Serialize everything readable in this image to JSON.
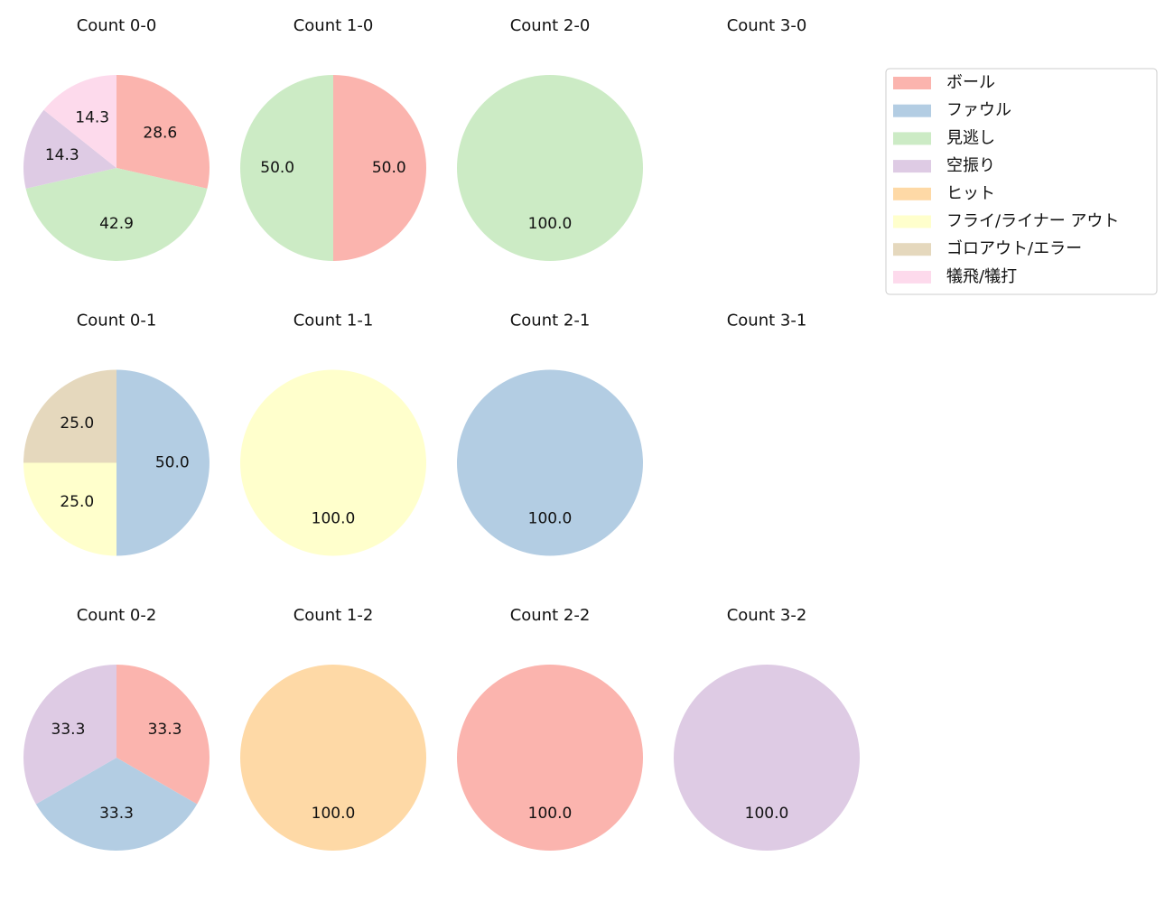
{
  "chart_data": [
    {
      "type": "pie",
      "title": "Count 0-0",
      "values": [
        28.6,
        42.9,
        14.3,
        14.3
      ],
      "value_labels": [
        "28.6",
        "42.9",
        "14.3",
        "14.3"
      ],
      "colors": [
        "#fbb4ae",
        "#ccebc5",
        "#decbe4",
        "#fddaec"
      ]
    },
    {
      "type": "pie",
      "title": "Count 1-0",
      "values": [
        50,
        50
      ],
      "value_labels": [
        "50.0",
        "50.0"
      ],
      "colors": [
        "#fbb4ae",
        "#ccebc5"
      ]
    },
    {
      "type": "pie",
      "title": "Count 2-0",
      "values": [
        100
      ],
      "value_labels": [
        "100.0"
      ],
      "colors": [
        "#ccebc5"
      ]
    },
    {
      "type": "pie",
      "title": "Count 3-0",
      "values": [],
      "value_labels": [],
      "colors": []
    },
    {
      "type": "pie",
      "title": "Count 0-1",
      "values": [
        50,
        25,
        25
      ],
      "value_labels": [
        "50.0",
        "25.0",
        "25.0"
      ],
      "colors": [
        "#b3cde3",
        "#ffffcc",
        "#e5d8bd"
      ]
    },
    {
      "type": "pie",
      "title": "Count 1-1",
      "values": [
        100
      ],
      "value_labels": [
        "100.0"
      ],
      "colors": [
        "#ffffcc"
      ]
    },
    {
      "type": "pie",
      "title": "Count 2-1",
      "values": [
        100
      ],
      "value_labels": [
        "100.0"
      ],
      "colors": [
        "#b3cde3"
      ]
    },
    {
      "type": "pie",
      "title": "Count 3-1",
      "values": [],
      "value_labels": [],
      "colors": []
    },
    {
      "type": "pie",
      "title": "Count 0-2",
      "values": [
        33.3,
        33.3,
        33.3
      ],
      "value_labels": [
        "33.3",
        "33.3",
        "33.3"
      ],
      "colors": [
        "#fbb4ae",
        "#b3cde3",
        "#decbe4"
      ]
    },
    {
      "type": "pie",
      "title": "Count 1-2",
      "values": [
        100
      ],
      "value_labels": [
        "100.0"
      ],
      "colors": [
        "#fed9a6"
      ]
    },
    {
      "type": "pie",
      "title": "Count 2-2",
      "values": [
        100
      ],
      "value_labels": [
        "100.0"
      ],
      "colors": [
        "#fbb4ae"
      ]
    },
    {
      "type": "pie",
      "title": "Count 3-2",
      "values": [
        100
      ],
      "value_labels": [
        "100.0"
      ],
      "colors": [
        "#decbe4"
      ]
    }
  ],
  "legend": {
    "labels": [
      "ボール",
      "ファウル",
      "見逃し",
      "空振り",
      "ヒット",
      "フライ/ライナー アウト",
      "ゴロアウト/エラー",
      "犠飛/犠打"
    ],
    "colors": [
      "#fbb4ae",
      "#b3cde3",
      "#ccebc5",
      "#decbe4",
      "#fed9a6",
      "#ffffcc",
      "#e5d8bd",
      "#fddaec"
    ]
  }
}
